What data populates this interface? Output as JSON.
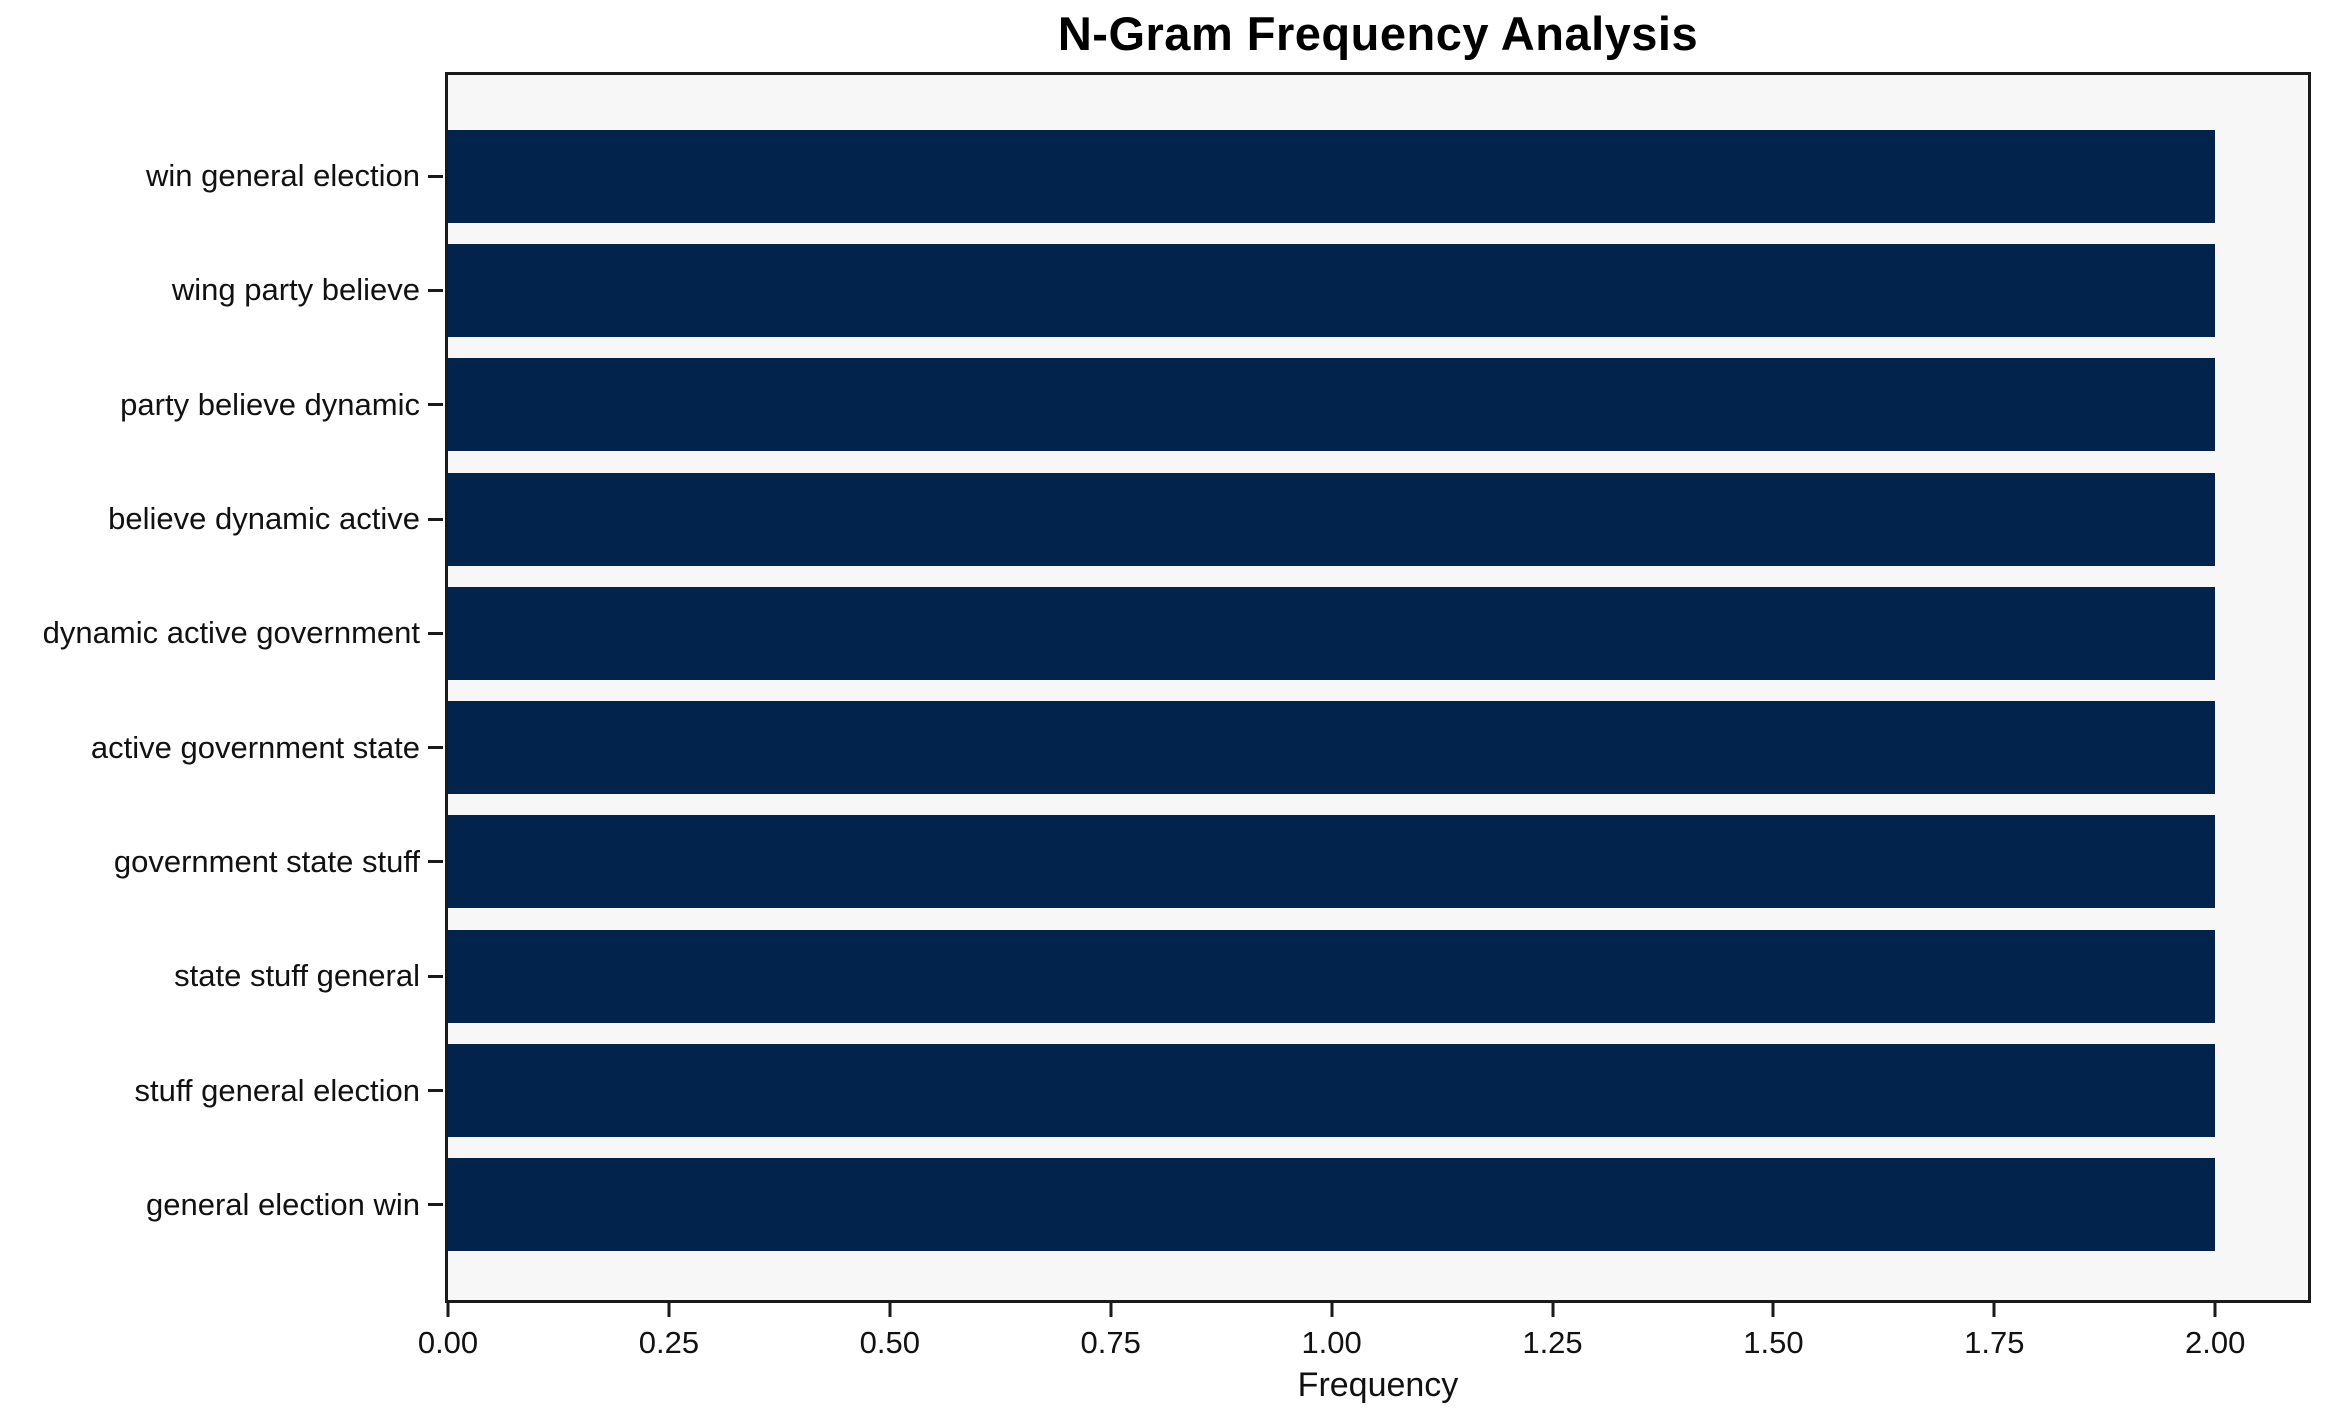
{
  "chart_data": {
    "type": "bar",
    "orientation": "horizontal",
    "title": "N-Gram Frequency Analysis",
    "xlabel": "Frequency",
    "ylabel": "",
    "categories": [
      "win general election",
      "wing party believe",
      "party believe dynamic",
      "believe dynamic active",
      "dynamic active government",
      "active government state",
      "government state stuff",
      "state stuff general",
      "stuff general election",
      "general election win"
    ],
    "values": [
      2,
      2,
      2,
      2,
      2,
      2,
      2,
      2,
      2,
      2
    ],
    "xlim": [
      0,
      2.105
    ],
    "xticks": [
      {
        "value": 0.0,
        "label": "0.00"
      },
      {
        "value": 0.25,
        "label": "0.25"
      },
      {
        "value": 0.5,
        "label": "0.50"
      },
      {
        "value": 0.75,
        "label": "0.75"
      },
      {
        "value": 1.0,
        "label": "1.00"
      },
      {
        "value": 1.25,
        "label": "1.25"
      },
      {
        "value": 1.5,
        "label": "1.50"
      },
      {
        "value": 1.75,
        "label": "1.75"
      },
      {
        "value": 2.0,
        "label": "2.00"
      }
    ],
    "grid": false,
    "legend": null,
    "colors": {
      "bar": "#02234c",
      "plot_background": "#f7f7f7",
      "figure_background": "#ffffff",
      "axis": "#1a1a1a",
      "text": "#111111"
    }
  }
}
